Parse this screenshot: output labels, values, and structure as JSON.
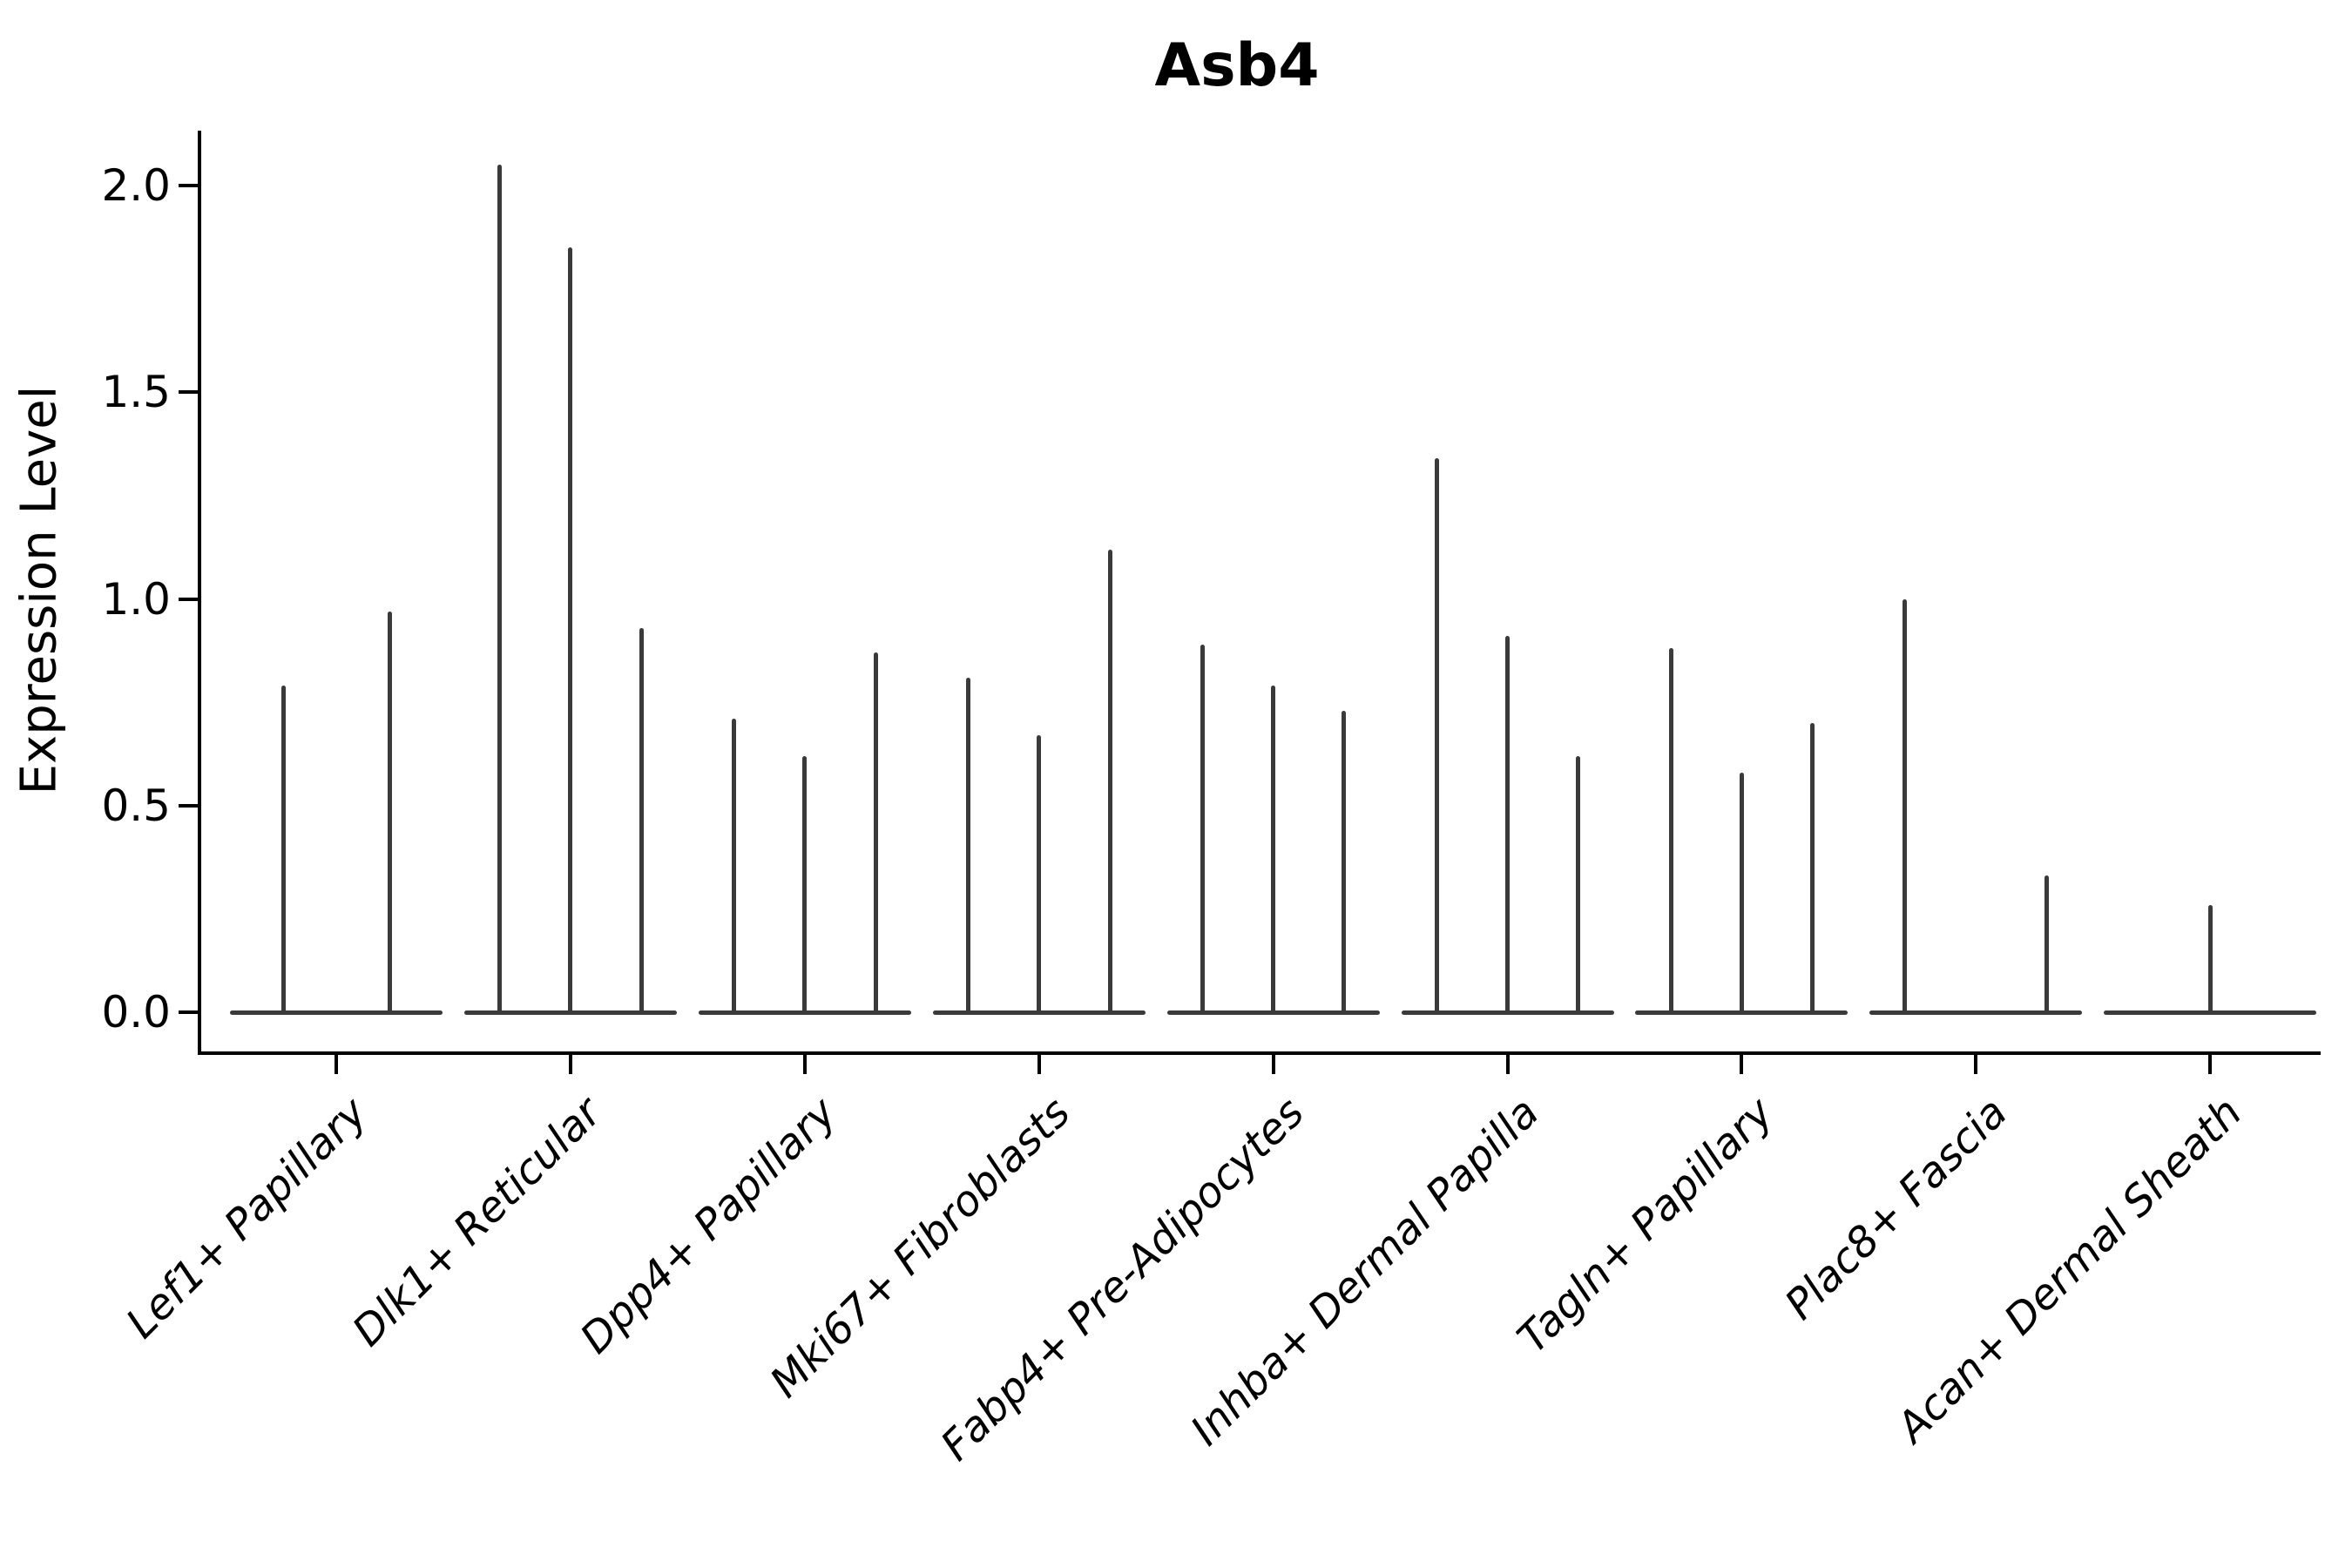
{
  "title": "Asb4",
  "y_axis": {
    "label": "Expression Level",
    "tick_labels": [
      "0.0",
      "0.5",
      "1.0",
      "1.5",
      "2.0"
    ],
    "tick_values": [
      0.0,
      0.5,
      1.0,
      1.5,
      2.0
    ]
  },
  "chart_data": {
    "type": "violin",
    "style": "needle-thin violins with flat bases at zero (Seurat-style VlnPlot)",
    "title": "Asb4",
    "xlabel": "",
    "ylabel": "Expression Level",
    "ylim": [
      0,
      2.12
    ],
    "yticks": [
      0.0,
      0.5,
      1.0,
      1.5,
      2.0
    ],
    "grid": false,
    "legend": "none",
    "categories": [
      "Lef1+ Papillary",
      "Dlk1+ Reticular",
      "Dpp4+ Papillary",
      "Mki67+ Fibroblasts",
      "Fabp4+ Pre-Adipocytes",
      "Inhba+ Dermal Papilla",
      "Tagln+ Papillary",
      "Plac8+ Fascia",
      "Acan+ Dermal Sheath"
    ],
    "series": [
      {
        "category": "Lef1+ Papillary",
        "violin_peaks": [
          0.79,
          0.97
        ]
      },
      {
        "category": "Dlk1+ Reticular",
        "violin_peaks": [
          2.05,
          1.85,
          0.93
        ]
      },
      {
        "category": "Dpp4+ Papillary",
        "violin_peaks": [
          0.71,
          0.62,
          0.87
        ]
      },
      {
        "category": "Mki67+ Fibroblasts",
        "violin_peaks": [
          0.81,
          0.67,
          1.12
        ]
      },
      {
        "category": "Fabp4+ Pre-Adipocytes",
        "violin_peaks": [
          0.89,
          0.79,
          0.73
        ]
      },
      {
        "category": "Inhba+ Dermal Papilla",
        "violin_peaks": [
          1.34,
          0.91,
          0.62
        ]
      },
      {
        "category": "Tagln+ Papillary",
        "violin_peaks": [
          0.88,
          0.58,
          0.7
        ]
      },
      {
        "category": "Plac8+ Fascia",
        "violin_peaks": [
          1.0,
          0.0,
          0.33
        ]
      },
      {
        "category": "Acan+ Dermal Sheath",
        "violin_peaks": [
          0.26
        ]
      }
    ],
    "colors": {
      "violin": "#3a3a3a",
      "axis": "#000000",
      "text": "#000000"
    }
  }
}
